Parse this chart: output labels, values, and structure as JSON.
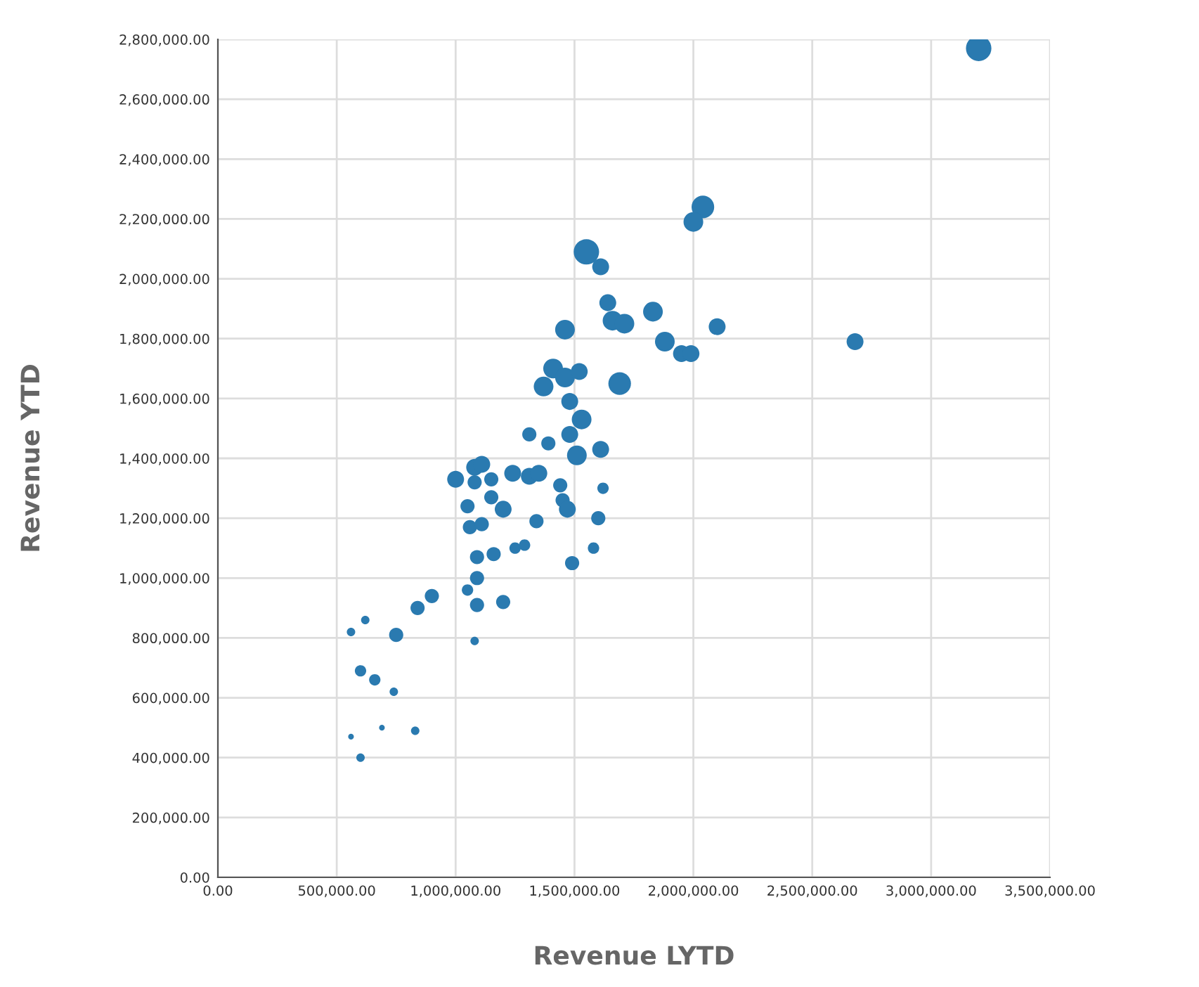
{
  "chart_data": {
    "type": "bubble",
    "xlabel": "Revenue LYTD",
    "ylabel": "Revenue YTD",
    "color": "#2a7ab0",
    "grid": true,
    "xlim": [
      0,
      3500000
    ],
    "ylim": [
      0,
      2800000
    ],
    "xticks": [
      {
        "value": 0,
        "label": "0.00"
      },
      {
        "value": 500000,
        "label": "500,000.00"
      },
      {
        "value": 1000000,
        "label": "1,000,000.00"
      },
      {
        "value": 1500000,
        "label": "1,500,000.00"
      },
      {
        "value": 2000000,
        "label": "2,000,000.00"
      },
      {
        "value": 2500000,
        "label": "2,500,000.00"
      },
      {
        "value": 3000000,
        "label": "3,000,000.00"
      },
      {
        "value": 3500000,
        "label": "3,500,000.00"
      }
    ],
    "yticks": [
      {
        "value": 0,
        "label": "0.00"
      },
      {
        "value": 200000,
        "label": "200,000.00"
      },
      {
        "value": 400000,
        "label": "400,000.00"
      },
      {
        "value": 600000,
        "label": "600,000.00"
      },
      {
        "value": 800000,
        "label": "800,000.00"
      },
      {
        "value": 1000000,
        "label": "1,000,000.00"
      },
      {
        "value": 1200000,
        "label": "1,200,000.00"
      },
      {
        "value": 1400000,
        "label": "1,400,000.00"
      },
      {
        "value": 1600000,
        "label": "1,600,000.00"
      },
      {
        "value": 1800000,
        "label": "1,800,000.00"
      },
      {
        "value": 2000000,
        "label": "2,000,000.00"
      },
      {
        "value": 2200000,
        "label": "2,200,000.00"
      },
      {
        "value": 2400000,
        "label": "2,400,000.00"
      },
      {
        "value": 2600000,
        "label": "2,600,000.00"
      },
      {
        "value": 2800000,
        "label": "2,800,000.00"
      }
    ],
    "x": [
      3200000,
      2040000,
      2000000,
      1550000,
      1610000,
      1640000,
      1660000,
      1710000,
      1830000,
      2100000,
      1460000,
      1880000,
      1950000,
      1990000,
      2680000,
      1410000,
      1460000,
      1520000,
      1370000,
      1690000,
      1480000,
      1530000,
      1310000,
      1390000,
      1480000,
      1510000,
      1610000,
      1080000,
      1110000,
      1000000,
      1080000,
      1150000,
      1240000,
      1310000,
      1350000,
      1440000,
      1450000,
      1470000,
      1620000,
      1150000,
      1050000,
      1200000,
      1060000,
      1110000,
      1340000,
      1600000,
      1250000,
      1290000,
      1490000,
      1580000,
      1090000,
      1160000,
      1090000,
      1050000,
      1090000,
      1200000,
      1080000,
      900000,
      840000,
      750000,
      620000,
      560000,
      600000,
      660000,
      740000,
      560000,
      690000,
      830000,
      600000
    ],
    "values": [
      2770000,
      2240000,
      2190000,
      2090000,
      2040000,
      1920000,
      1860000,
      1850000,
      1890000,
      1840000,
      1830000,
      1790000,
      1750000,
      1750000,
      1790000,
      1700000,
      1670000,
      1690000,
      1640000,
      1650000,
      1590000,
      1530000,
      1480000,
      1450000,
      1480000,
      1410000,
      1430000,
      1370000,
      1380000,
      1330000,
      1320000,
      1330000,
      1350000,
      1340000,
      1350000,
      1310000,
      1260000,
      1230000,
      1300000,
      1270000,
      1240000,
      1230000,
      1170000,
      1180000,
      1190000,
      1200000,
      1100000,
      1110000,
      1050000,
      1100000,
      1070000,
      1080000,
      1000000,
      960000,
      910000,
      920000,
      790000,
      940000,
      900000,
      810000,
      860000,
      820000,
      690000,
      660000,
      620000,
      470000,
      500000,
      490000,
      400000
    ],
    "sizes": [
      1,
      0.79,
      0.6,
      1,
      0.44,
      0.44,
      0.6,
      0.6,
      0.6,
      0.44,
      0.6,
      0.6,
      0.44,
      0.44,
      0.44,
      0.6,
      0.6,
      0.44,
      0.6,
      0.79,
      0.44,
      0.6,
      0.31,
      0.31,
      0.44,
      0.6,
      0.44,
      0.44,
      0.44,
      0.44,
      0.31,
      0.31,
      0.44,
      0.44,
      0.44,
      0.31,
      0.31,
      0.44,
      0.2,
      0.31,
      0.31,
      0.44,
      0.31,
      0.31,
      0.31,
      0.31,
      0.2,
      0.2,
      0.31,
      0.2,
      0.31,
      0.31,
      0.31,
      0.2,
      0.31,
      0.31,
      0.11,
      0.31,
      0.31,
      0.31,
      0.11,
      0.11,
      0.2,
      0.2,
      0.11,
      0.05,
      0.05,
      0.11,
      0.11
    ]
  }
}
